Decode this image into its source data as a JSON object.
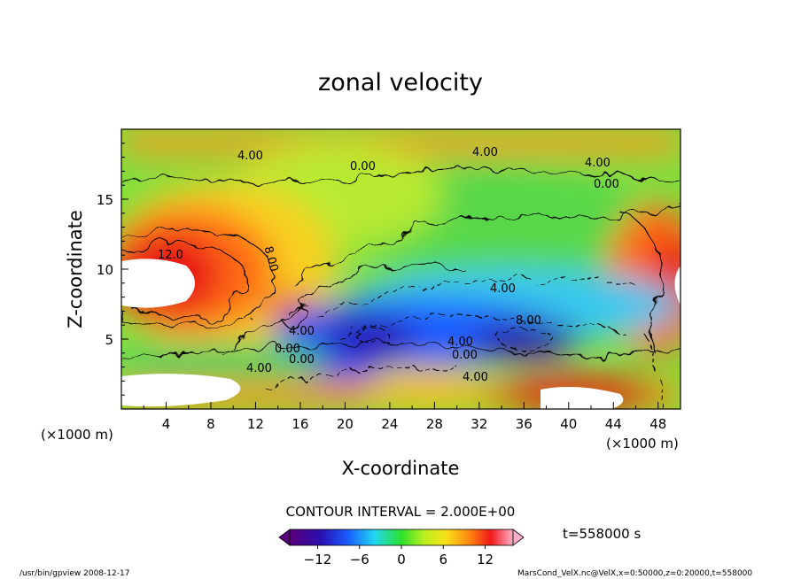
{
  "chart_data": {
    "type": "heatmap",
    "title": "zonal velocity",
    "xlabel": "X-coordinate",
    "ylabel": "Z-coordinate",
    "x_unit_left": "(×1000 m)",
    "x_unit_right": "(×1000 m)",
    "xlim": [
      0,
      50
    ],
    "ylim": [
      0,
      20
    ],
    "x_ticks": [
      "4",
      "8",
      "12",
      "16",
      "20",
      "24",
      "28",
      "32",
      "36",
      "40",
      "44",
      "48"
    ],
    "y_ticks": [
      "5",
      "10",
      "15"
    ],
    "contour_interval_text": "CONTOUR INTERVAL = 2.000E+00",
    "time_text": "t=558000 s",
    "colorbar": {
      "range": [
        -16,
        16
      ],
      "ticks": [
        "−12",
        "−6",
        "0",
        "6",
        "12"
      ],
      "low_color": "#5a007a",
      "high_color": "#ffb0c8"
    },
    "contour_labels": [
      "12.0",
      "8.00",
      "4.00",
      "0.00",
      "0.00",
      "4.00",
      "4.00",
      "0.00",
      "4.00",
      "4.00",
      "8.00",
      "4.00",
      "0.00",
      "4.00",
      "4.00",
      "0.00"
    ],
    "footer_left": "/usr/bin/gpview   2008-12-17",
    "footer_right": "MarsCond_VelX.nc@VelX,x=0:50000,z=0:20000,t=558000"
  }
}
